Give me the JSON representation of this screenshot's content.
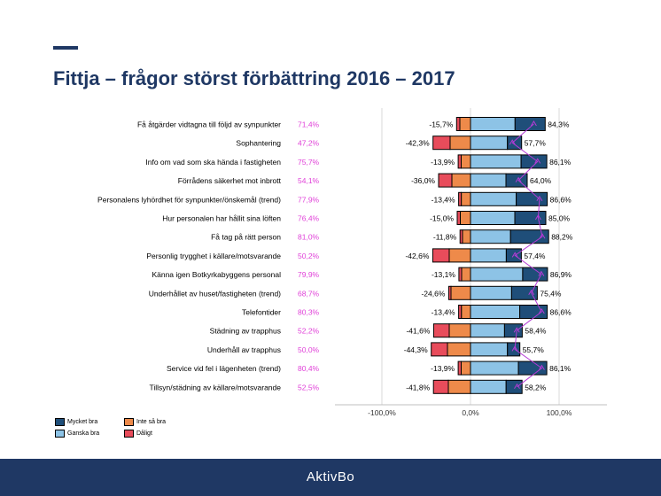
{
  "title": "Fittja – frågor störst förbättring 2016 – 2017",
  "footer": {
    "logo_text": "AktivBo"
  },
  "colors": {
    "mycket_bra": "#1f4e79",
    "ganska_bra": "#8dc3e6",
    "inte_sa_bra": "#ee8a4a",
    "daligt": "#e84c5b",
    "pct_label": "#e040d8",
    "line": "#b53bd6",
    "title": "#1f3864"
  },
  "legend": {
    "items": [
      {
        "label": "Mycket bra",
        "color": "#1f4e79"
      },
      {
        "label": "Inte så bra",
        "color": "#ee8a4a"
      },
      {
        "label": "Ganska bra",
        "color": "#8dc3e6"
      },
      {
        "label": "Dåligt",
        "color": "#e84c5b"
      }
    ]
  },
  "chart_data": {
    "type": "bar",
    "orientation": "horizontal-diverging-stacked",
    "xlim": [
      -100,
      100
    ],
    "x_ticks": [
      "-100,0%",
      "0,0%",
      "100,0%"
    ],
    "categories": [
      "Få åtgärder vidtagna till följd av synpunkter",
      "Sophantering",
      "Info om vad som ska hända i fastigheten",
      "Förrådens säkerhet mot inbrott",
      "Personalens lyhördhet för synpunkter/önskemål (trend)",
      "Hur personalen har hållit sina löften",
      "Få tag på rätt person",
      "Personlig trygghet i källare/motsvarande",
      "Känna igen Botkyrkabyggens personal",
      "Underhållet av huset/fastigheten (trend)",
      "Telefontider",
      "Städning av trapphus",
      "Underhåll av trapphus",
      "Service vid fel i lägenheten (trend)",
      "Tillsyn/städning av källare/motsvarande"
    ],
    "index_labels": [
      "71,4%",
      "47,2%",
      "75,7%",
      "54,1%",
      "77,9%",
      "76,4%",
      "81,0%",
      "50,2%",
      "79,9%",
      "68,7%",
      "80,3%",
      "52,2%",
      "50,0%",
      "80,4%",
      "52,5%"
    ],
    "index_values": [
      71.4,
      47.2,
      75.7,
      54.1,
      77.9,
      76.4,
      81.0,
      50.2,
      79.9,
      68.7,
      80.3,
      52.2,
      50.0,
      80.4,
      52.5
    ],
    "negative_labels": [
      "-15,7%",
      "-42,3%",
      "-13,9%",
      "-36,0%",
      "-13,4%",
      "-15,0%",
      "-11,8%",
      "-42,6%",
      "-13,1%",
      "-24,6%",
      "-13,4%",
      "-41,6%",
      "-44,3%",
      "-13,9%",
      "-41,8%"
    ],
    "positive_labels": [
      "84,3%",
      "57,7%",
      "86,1%",
      "64,0%",
      "86,6%",
      "85,0%",
      "88,2%",
      "57,4%",
      "86,9%",
      "75,4%",
      "86,6%",
      "58,4%",
      "55,7%",
      "86,1%",
      "58,2%"
    ],
    "series": [
      {
        "name": "Dåligt",
        "values": [
          -3.7,
          -19.3,
          -3.4,
          -15.0,
          -3.0,
          -3.5,
          -2.8,
          -18.6,
          -3.1,
          -2.6,
          -3.1,
          -17.6,
          -18.3,
          -3.4,
          -16.8
        ]
      },
      {
        "name": "Inte så bra",
        "values": [
          -12.0,
          -23.0,
          -10.5,
          -21.0,
          -10.4,
          -11.5,
          -9.0,
          -24.0,
          -10.0,
          -22.0,
          -10.3,
          -24.0,
          -26.0,
          -10.5,
          -25.0
        ]
      },
      {
        "name": "Ganska bra",
        "values": [
          50.3,
          41.7,
          57.1,
          40.0,
          51.6,
          50.0,
          45.2,
          40.4,
          58.9,
          46.4,
          55.6,
          38.4,
          41.7,
          54.1,
          40.2
        ]
      },
      {
        "name": "Mycket bra",
        "values": [
          34.0,
          16.0,
          29.0,
          24.0,
          35.0,
          35.0,
          43.0,
          17.0,
          28.0,
          29.0,
          31.0,
          20.0,
          14.0,
          32.0,
          18.0
        ]
      }
    ],
    "negative_totals": [
      -15.7,
      -42.3,
      -13.9,
      -36.0,
      -13.4,
      -15.0,
      -11.8,
      -42.6,
      -13.1,
      -24.6,
      -13.4,
      -41.6,
      -44.3,
      -13.9,
      -41.8
    ],
    "positive_totals": [
      84.3,
      57.7,
      86.1,
      64.0,
      86.6,
      85.0,
      88.2,
      57.4,
      86.9,
      75.4,
      86.6,
      58.4,
      55.7,
      86.1,
      58.2
    ],
    "grid": true
  }
}
